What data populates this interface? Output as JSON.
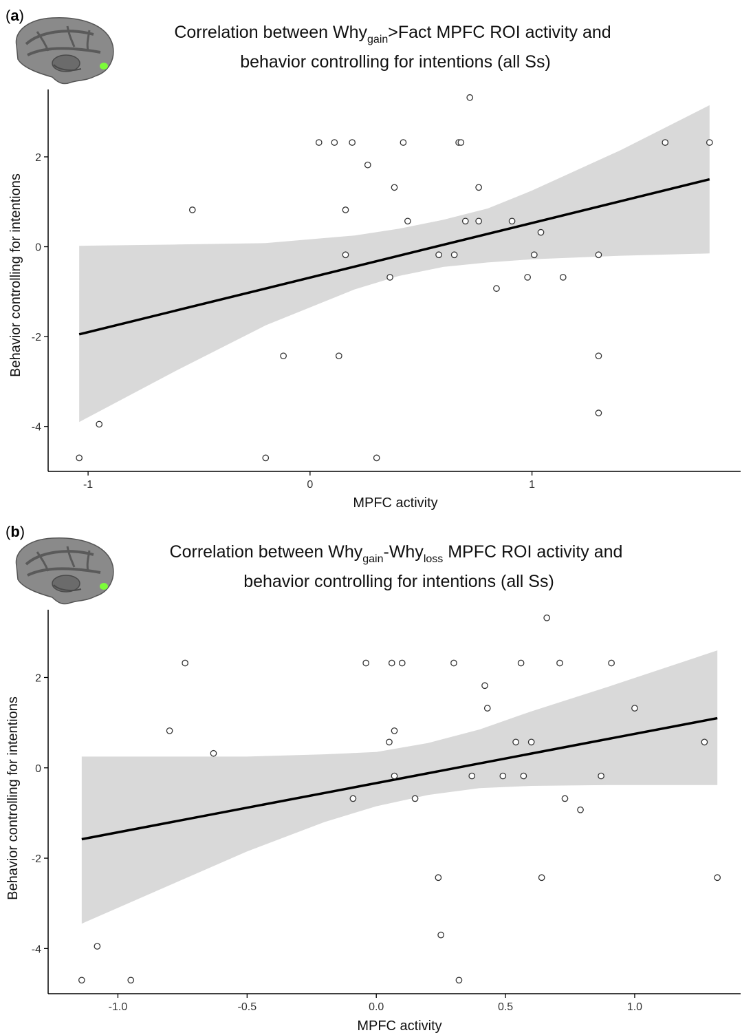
{
  "panels": [
    {
      "letter": "a",
      "title": {
        "line1": {
          "pre": "Correlation between Why",
          "sub": "gain",
          "post": ">Fact MPFC ROI activity and"
        },
        "line2": "behavior controlling for intentions (all Ss)"
      },
      "colors": {
        "band": "#d9d9d9",
        "line": "#000000",
        "point_stroke": "#333333",
        "axis": "#000000",
        "brain_highlight": "#7cfc3a"
      },
      "brain_icon": "brain-medial-view-icon",
      "chart_data": {
        "type": "scatter",
        "xlabel": "MPFC activity",
        "ylabel": "Behavior controlling for intentions",
        "xlim": [
          -1.18,
          1.94
        ],
        "ylim": [
          -5.0,
          3.5
        ],
        "x_ticks": [
          -1,
          0,
          1
        ],
        "x_tick_labels": [
          "-1",
          "0",
          "1"
        ],
        "y_ticks": [
          -4,
          -2,
          0,
          2
        ],
        "y_tick_labels": [
          "-4",
          "-2",
          "0",
          "2"
        ],
        "points": [
          {
            "x": -1.04,
            "y": -4.7
          },
          {
            "x": -0.95,
            "y": -3.95
          },
          {
            "x": -0.53,
            "y": 0.82
          },
          {
            "x": -0.2,
            "y": -4.7
          },
          {
            "x": -0.12,
            "y": -2.43
          },
          {
            "x": 0.04,
            "y": 2.32
          },
          {
            "x": 0.11,
            "y": 2.32
          },
          {
            "x": 0.13,
            "y": -2.43
          },
          {
            "x": 0.16,
            "y": -0.18
          },
          {
            "x": 0.16,
            "y": 0.82
          },
          {
            "x": 0.19,
            "y": 2.32
          },
          {
            "x": 0.26,
            "y": 1.82
          },
          {
            "x": 0.3,
            "y": -4.7
          },
          {
            "x": 0.36,
            "y": -0.68
          },
          {
            "x": 0.38,
            "y": 1.32
          },
          {
            "x": 0.42,
            "y": 2.32
          },
          {
            "x": 0.44,
            "y": 0.57
          },
          {
            "x": 0.58,
            "y": -0.18
          },
          {
            "x": 0.65,
            "y": -0.18
          },
          {
            "x": 0.67,
            "y": 2.32
          },
          {
            "x": 0.68,
            "y": 2.32
          },
          {
            "x": 0.7,
            "y": 0.57
          },
          {
            "x": 0.72,
            "y": 3.32
          },
          {
            "x": 0.76,
            "y": 1.32
          },
          {
            "x": 0.76,
            "y": 0.57
          },
          {
            "x": 0.84,
            "y": -0.93
          },
          {
            "x": 0.91,
            "y": 0.57
          },
          {
            "x": 0.98,
            "y": -0.68
          },
          {
            "x": 1.01,
            "y": -0.18
          },
          {
            "x": 1.04,
            "y": 0.32
          },
          {
            "x": 1.14,
            "y": -0.68
          },
          {
            "x": 1.3,
            "y": -0.18
          },
          {
            "x": 1.3,
            "y": -2.43
          },
          {
            "x": 1.3,
            "y": -3.7
          },
          {
            "x": 1.6,
            "y": 2.32
          },
          {
            "x": 1.8,
            "y": 2.32
          }
        ],
        "fit": {
          "x": [
            -1.04,
            1.8
          ],
          "y": [
            -1.95,
            1.5
          ]
        },
        "ci_band": {
          "x": [
            -1.04,
            -0.6,
            -0.2,
            0.2,
            0.4,
            0.6,
            0.8,
            1.0,
            1.4,
            1.8
          ],
          "lower": [
            -3.9,
            -2.75,
            -1.75,
            -0.95,
            -0.65,
            -0.45,
            -0.35,
            -0.28,
            -0.2,
            -0.15
          ],
          "upper": [
            0.02,
            0.05,
            0.08,
            0.25,
            0.4,
            0.6,
            0.85,
            1.25,
            2.15,
            3.15
          ]
        },
        "grid": false,
        "legend": "none"
      }
    },
    {
      "letter": "b",
      "title": {
        "line1": {
          "pre": "Correlation between Why",
          "sub": "gain",
          "mid": "-Why",
          "sub2": "loss",
          "post": " MPFC ROI activity and"
        },
        "line2": "behavior controlling for intentions (all Ss)"
      },
      "colors": {
        "band": "#d9d9d9",
        "line": "#000000",
        "point_stroke": "#333333",
        "axis": "#000000",
        "brain_highlight": "#7cfc3a"
      },
      "brain_icon": "brain-medial-view-icon",
      "chart_data": {
        "type": "scatter",
        "xlabel": "MPFC activity",
        "ylabel": "Behavior controlling for intentions",
        "xlim": [
          -1.27,
          1.41
        ],
        "ylim": [
          -5.0,
          3.5
        ],
        "x_ticks": [
          -1.0,
          -0.5,
          0.0,
          0.5,
          1.0
        ],
        "x_tick_labels": [
          "-1.0",
          "-0.5",
          "0.0",
          "0.5",
          "1.0"
        ],
        "y_ticks": [
          -4,
          -2,
          0,
          2
        ],
        "y_tick_labels": [
          "-4",
          "-2",
          "0",
          "2"
        ],
        "points": [
          {
            "x": -1.14,
            "y": -4.7
          },
          {
            "x": -1.08,
            "y": -3.95
          },
          {
            "x": -0.95,
            "y": -4.7
          },
          {
            "x": -0.8,
            "y": 0.82
          },
          {
            "x": -0.74,
            "y": 2.32
          },
          {
            "x": -0.63,
            "y": 0.32
          },
          {
            "x": -0.09,
            "y": -0.68
          },
          {
            "x": -0.04,
            "y": 2.32
          },
          {
            "x": 0.05,
            "y": 0.57
          },
          {
            "x": 0.06,
            "y": 2.32
          },
          {
            "x": 0.07,
            "y": 0.82
          },
          {
            "x": 0.07,
            "y": -0.18
          },
          {
            "x": 0.1,
            "y": 2.32
          },
          {
            "x": 0.15,
            "y": -0.68
          },
          {
            "x": 0.24,
            "y": -2.43
          },
          {
            "x": 0.25,
            "y": -3.7
          },
          {
            "x": 0.3,
            "y": 2.32
          },
          {
            "x": 0.32,
            "y": -4.7
          },
          {
            "x": 0.37,
            "y": -0.18
          },
          {
            "x": 0.42,
            "y": 1.82
          },
          {
            "x": 0.43,
            "y": 1.32
          },
          {
            "x": 0.49,
            "y": -0.18
          },
          {
            "x": 0.54,
            "y": 0.57
          },
          {
            "x": 0.56,
            "y": 2.32
          },
          {
            "x": 0.57,
            "y": -0.18
          },
          {
            "x": 0.6,
            "y": 0.57
          },
          {
            "x": 0.64,
            "y": -2.43
          },
          {
            "x": 0.66,
            "y": 3.32
          },
          {
            "x": 0.71,
            "y": 2.32
          },
          {
            "x": 0.73,
            "y": -0.68
          },
          {
            "x": 0.79,
            "y": -0.93
          },
          {
            "x": 0.87,
            "y": -0.18
          },
          {
            "x": 0.91,
            "y": 2.32
          },
          {
            "x": 1.0,
            "y": 1.32
          },
          {
            "x": 1.27,
            "y": 0.57
          },
          {
            "x": 1.32,
            "y": -2.43
          }
        ],
        "fit": {
          "x": [
            -1.14,
            1.32
          ],
          "y": [
            -1.58,
            1.1
          ]
        },
        "ci_band": {
          "x": [
            -1.14,
            -0.8,
            -0.5,
            -0.2,
            0.0,
            0.2,
            0.4,
            0.6,
            0.9,
            1.32
          ],
          "lower": [
            -3.45,
            -2.6,
            -1.85,
            -1.2,
            -0.85,
            -0.6,
            -0.45,
            -0.4,
            -0.38,
            -0.38
          ],
          "upper": [
            0.25,
            0.25,
            0.25,
            0.3,
            0.35,
            0.55,
            0.85,
            1.25,
            1.8,
            2.6
          ]
        },
        "grid": false,
        "legend": "none"
      }
    }
  ]
}
